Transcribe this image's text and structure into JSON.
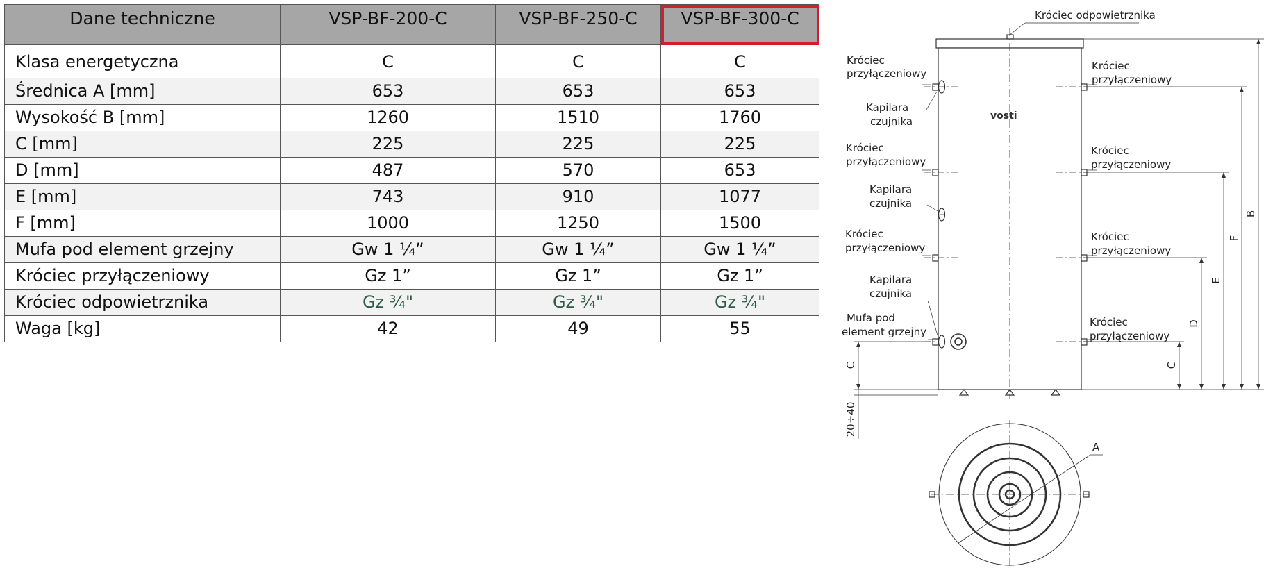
{
  "table": {
    "headers": [
      "Dane techniczne",
      "VSP-BF-200-C",
      "VSP-BF-250-C",
      "VSP-BF-300-C"
    ],
    "highlight_color": "#d21f2b",
    "header_bg": "#a6a6a6",
    "rows": [
      {
        "label": "Klasa energetyczna",
        "values": [
          "C",
          "C",
          "C"
        ]
      },
      {
        "label": "Średnica A [mm]",
        "values": [
          "653",
          "653",
          "653"
        ]
      },
      {
        "label": "Wysokość B [mm]",
        "values": [
          "1260",
          "1510",
          "1760"
        ]
      },
      {
        "label": "C [mm]",
        "values": [
          "225",
          "225",
          "225"
        ]
      },
      {
        "label": "D [mm]",
        "values": [
          "487",
          "570",
          "653"
        ]
      },
      {
        "label": "E [mm]",
        "values": [
          "743",
          "910",
          "1077"
        ]
      },
      {
        "label": "F [mm]",
        "values": [
          "1000",
          "1250",
          "1500"
        ]
      },
      {
        "label": "Mufa pod element grzejny",
        "values": [
          "Gw 1 ¼”",
          "Gw 1 ¼”",
          "Gw 1 ¼”"
        ]
      },
      {
        "label": "Króciec przyłączeniowy",
        "values": [
          "Gz 1”",
          "Gz 1”",
          "Gz 1”"
        ]
      },
      {
        "label": "Króciec odpowietrznika",
        "values": [
          "Gz ¾\"",
          "Gz ¾\"",
          "Gz ¾\""
        ]
      },
      {
        "label": "Waga [kg]",
        "values": [
          "42",
          "49",
          "55"
        ]
      }
    ]
  },
  "drawing": {
    "logo": "vosti",
    "top_label": "Króciec odpowietrznika",
    "left_labels": {
      "krociec_1": [
        "Króciec",
        "przyłączeniowy"
      ],
      "kapilara_1": [
        "Kapilara",
        "czujnika"
      ],
      "krociec_2": [
        "Króciec",
        "przyłączeniowy"
      ],
      "kapilara_2": [
        "Kapilara",
        "czujnika"
      ],
      "krociec_3": [
        "Króciec",
        "przyłączeniowy"
      ],
      "kapilara_3": [
        "Kapilara",
        "czujnika"
      ],
      "mufa": [
        "Mufa pod",
        "element grzejny"
      ]
    },
    "right_labels": {
      "krociec_1": [
        "Króciec",
        "przyłączeniowy"
      ],
      "krociec_2": [
        "Króciec",
        "przyłączeniowy"
      ],
      "krociec_3": [
        "Króciec",
        "przyłączeniowy"
      ],
      "krociec_4": [
        "Króciec",
        "przyłączeniowy"
      ]
    },
    "dimensions": {
      "B": "B",
      "F": "F",
      "E": "E",
      "D": "D",
      "C_right": "C",
      "C_left": "C",
      "feet": "20÷40",
      "A": "A"
    }
  }
}
